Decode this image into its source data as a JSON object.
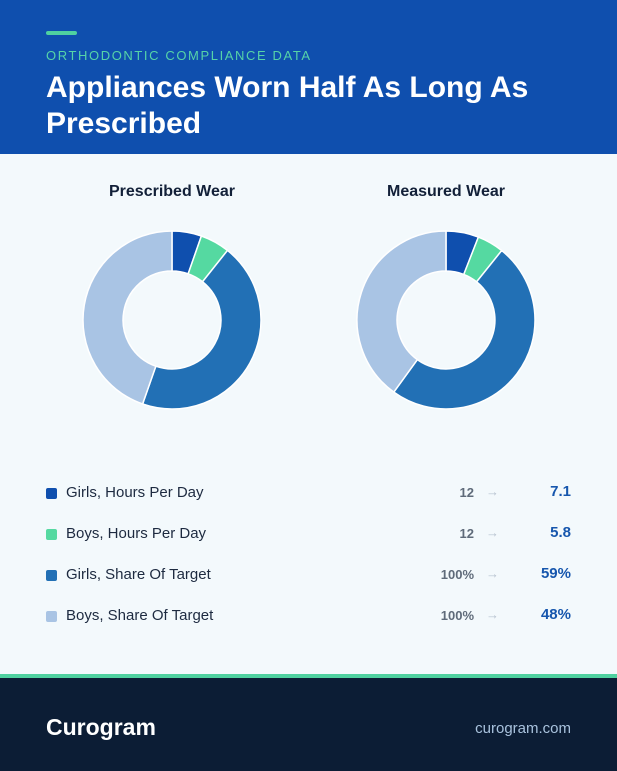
{
  "header": {
    "kicker": "ORTHODONTIC COMPLIANCE DATA",
    "title": "Appliances Worn Half As Long As Prescribed"
  },
  "colors": {
    "header_bg": "#0f4fae",
    "accent": "#4fd1a0",
    "footer_bg": "#0c1d35",
    "value_blue": "#1656ad"
  },
  "chart_data": [
    {
      "type": "pie",
      "title": "Prescribed Wear",
      "labels": [
        "Girls, Hours Per Day",
        "Boys, Hours Per Day",
        "Girls, Share Of Target",
        "Boys, Share Of Target"
      ],
      "values": [
        12,
        12,
        100,
        100
      ],
      "colors": [
        "#0f4fae",
        "#55d9a1",
        "#2270b5",
        "#a9c4e4"
      ],
      "hole": 0.55
    },
    {
      "type": "pie",
      "title": "Measured Wear",
      "labels": [
        "Girls, Hours Per Day",
        "Boys, Hours Per Day",
        "Girls, Share Of Target",
        "Boys, Share Of Target"
      ],
      "values": [
        7.1,
        5.8,
        59,
        48
      ],
      "colors": [
        "#0f4fae",
        "#55d9a1",
        "#2270b5",
        "#a9c4e4"
      ],
      "hole": 0.55
    }
  ],
  "legend": [
    {
      "label": "Girls, Hours Per Day",
      "before": "12",
      "after": "7.1",
      "color": "#0f4fae"
    },
    {
      "label": "Boys, Hours Per Day",
      "before": "12",
      "after": "5.8",
      "color": "#55d9a1"
    },
    {
      "label": "Girls, Share Of Target",
      "before": "100%",
      "after": "59%",
      "color": "#2270b5"
    },
    {
      "label": "Boys, Share Of Target",
      "before": "100%",
      "after": "48%",
      "color": "#a9c4e4"
    }
  ],
  "arrow": "→",
  "footer": {
    "brand": "Curogram",
    "site": "curogram.com"
  }
}
